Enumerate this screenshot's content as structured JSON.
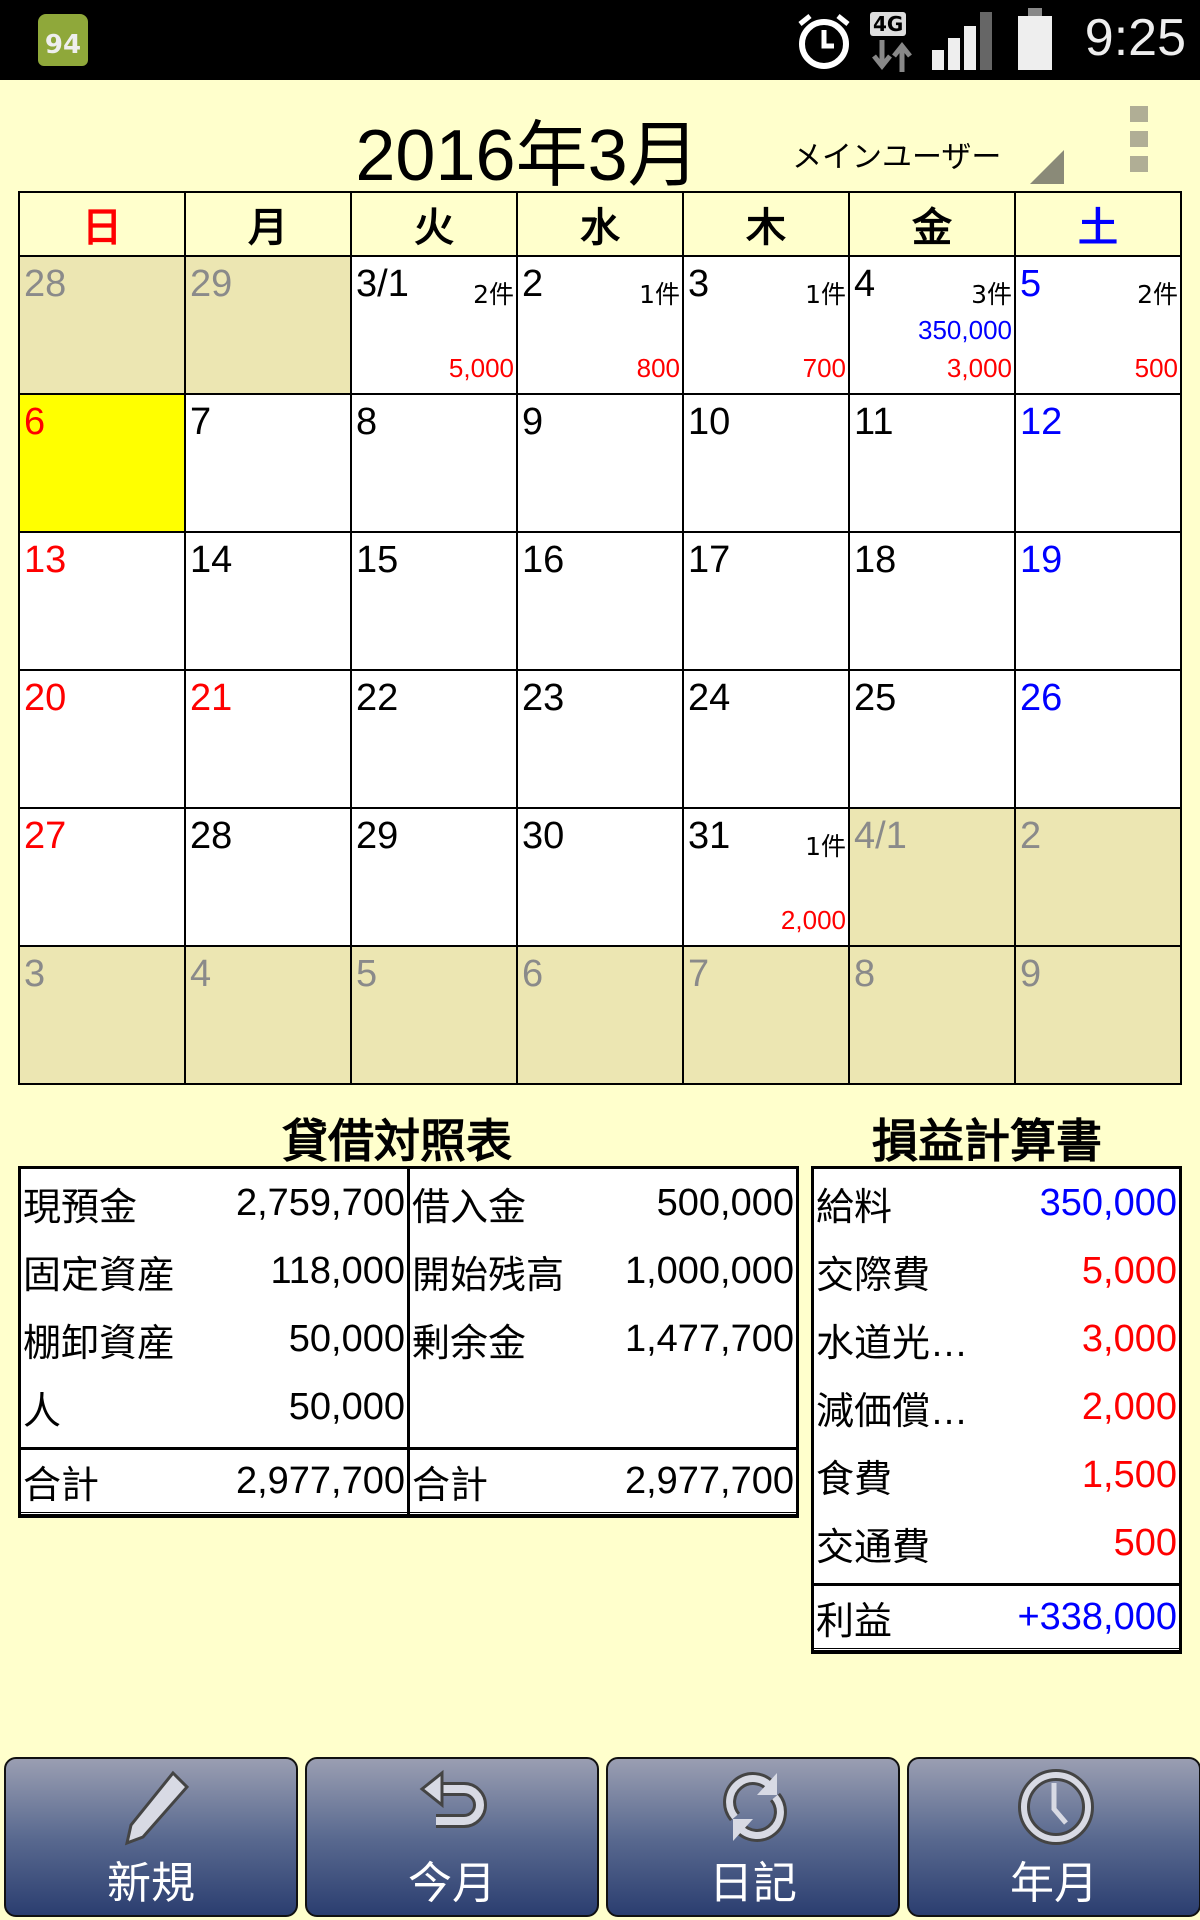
{
  "status": {
    "badge": "94",
    "time": "9:25",
    "network": "4G"
  },
  "header": {
    "title": "2016年3月",
    "user": "メインユーザー"
  },
  "weekdays": [
    "日",
    "月",
    "火",
    "水",
    "木",
    "金",
    "土"
  ],
  "weekday_colors": [
    "#ff0000",
    "#000000",
    "#000000",
    "#000000",
    "#000000",
    "#000000",
    "#0000ff"
  ],
  "today": "6",
  "weeks": [
    [
      {
        "d": "28",
        "k": "other"
      },
      {
        "d": "29",
        "k": "other"
      },
      {
        "d": "3/1",
        "c": "2件",
        "e": "5,000"
      },
      {
        "d": "2",
        "c": "1件",
        "e": "800"
      },
      {
        "d": "3",
        "c": "1件",
        "e": "700"
      },
      {
        "d": "4",
        "c": "3件",
        "i": "350,000",
        "e": "3,000"
      },
      {
        "d": "5",
        "k": "sat",
        "c": "2件",
        "e": "500"
      }
    ],
    [
      {
        "d": "6",
        "k": "sun"
      },
      {
        "d": "7"
      },
      {
        "d": "8"
      },
      {
        "d": "9"
      },
      {
        "d": "10"
      },
      {
        "d": "11"
      },
      {
        "d": "12",
        "k": "sat"
      }
    ],
    [
      {
        "d": "13",
        "k": "sun"
      },
      {
        "d": "14"
      },
      {
        "d": "15"
      },
      {
        "d": "16"
      },
      {
        "d": "17"
      },
      {
        "d": "18"
      },
      {
        "d": "19",
        "k": "sat"
      }
    ],
    [
      {
        "d": "20",
        "k": "sun"
      },
      {
        "d": "21",
        "k": "holiday"
      },
      {
        "d": "22"
      },
      {
        "d": "23"
      },
      {
        "d": "24"
      },
      {
        "d": "25"
      },
      {
        "d": "26",
        "k": "sat"
      }
    ],
    [
      {
        "d": "27",
        "k": "sun"
      },
      {
        "d": "28"
      },
      {
        "d": "29"
      },
      {
        "d": "30"
      },
      {
        "d": "31",
        "c": "1件",
        "e": "2,000"
      },
      {
        "d": "4/1",
        "k": "other"
      },
      {
        "d": "2",
        "k": "other"
      }
    ],
    [
      {
        "d": "3",
        "k": "other"
      },
      {
        "d": "4",
        "k": "other"
      },
      {
        "d": "5",
        "k": "other"
      },
      {
        "d": "6",
        "k": "other"
      },
      {
        "d": "7",
        "k": "other"
      },
      {
        "d": "8",
        "k": "other"
      },
      {
        "d": "9",
        "k": "other"
      }
    ]
  ],
  "balance_sheet": {
    "title": "貸借対照表",
    "assets": [
      {
        "label": "現預金",
        "value": "2,759,700"
      },
      {
        "label": "固定資産",
        "value": "118,000"
      },
      {
        "label": "棚卸資産",
        "value": "50,000"
      },
      {
        "label": "人",
        "value": "50,000"
      }
    ],
    "liabilities": [
      {
        "label": "借入金",
        "value": "500,000"
      },
      {
        "label": "開始残高",
        "value": "1,000,000"
      },
      {
        "label": "剰余金",
        "value": "1,477,700"
      }
    ],
    "assets_total": {
      "label": "合計",
      "value": "2,977,700"
    },
    "liabilities_total": {
      "label": "合計",
      "value": "2,977,700"
    }
  },
  "income_statement": {
    "title": "損益計算書",
    "items": [
      {
        "label": "給料",
        "value": "350,000",
        "color": "#0000ff"
      },
      {
        "label": "交際費",
        "value": "5,000",
        "color": "#ff0000"
      },
      {
        "label": "水道光…",
        "value": "3,000",
        "color": "#ff0000"
      },
      {
        "label": "減価償…",
        "value": "2,000",
        "color": "#ff0000"
      },
      {
        "label": "食費",
        "value": "1,500",
        "color": "#ff0000"
      },
      {
        "label": "交通費",
        "value": "500",
        "color": "#ff0000"
      }
    ],
    "profit": {
      "label": "利益",
      "value": "+338,000",
      "color": "#0000ff"
    }
  },
  "toolbar": [
    {
      "label": "新規",
      "icon": "pencil-icon"
    },
    {
      "label": "今月",
      "icon": "undo-arrow-icon"
    },
    {
      "label": "日記",
      "icon": "sync-icon"
    },
    {
      "label": "年月",
      "icon": "clock-icon"
    }
  ]
}
